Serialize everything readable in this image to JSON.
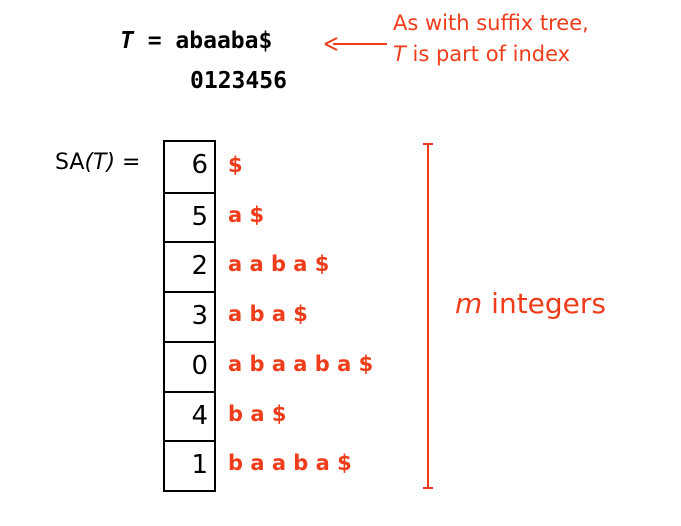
{
  "text_line": {
    "var": "T",
    "equals": " = ",
    "value": "abaaba$"
  },
  "index_line": "0123456",
  "note": {
    "line1": "As with suffix tree,",
    "line2_var": "T",
    "line2_rest": " is part of index"
  },
  "sa_label": {
    "prefix": "SA",
    "arg": "(T)",
    "suffix": " ="
  },
  "sa_values": [
    "6",
    "5",
    "2",
    "3",
    "0",
    "4",
    "1"
  ],
  "suffixes": [
    "$",
    "a $",
    "a a b a $",
    "a b a $",
    "a b a a b a $",
    "b a $",
    "b a a b a $"
  ],
  "m_label": {
    "var": "m",
    "rest": " integers"
  },
  "colors": {
    "accent": "#ef3c1a",
    "text": "#000000"
  }
}
